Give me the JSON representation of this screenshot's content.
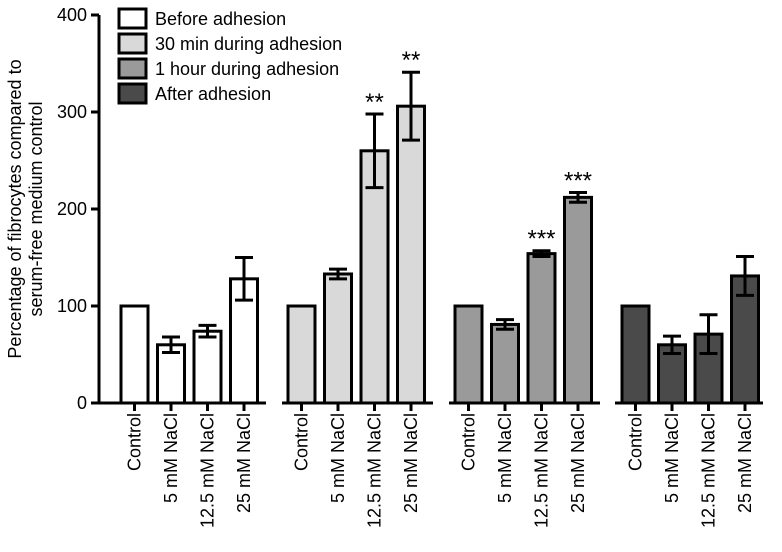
{
  "chart_data": {
    "type": "bar",
    "ylabel_lines": [
      "Percentage of fibrocytes compared to",
      "serum-free medium control"
    ],
    "ylim": [
      0,
      400
    ],
    "yticks": [
      0,
      100,
      200,
      300,
      400
    ],
    "grid": false,
    "legend_position": "top-left",
    "categories": [
      "Control",
      "5 mM NaCl",
      "12.5 mM NaCl",
      "25 mM NaCl"
    ],
    "series": [
      {
        "name": "Before adhesion",
        "color": "#ffffff",
        "values": [
          100,
          60,
          74,
          128
        ],
        "errors": [
          0,
          8,
          6,
          22
        ],
        "annotations": [
          "",
          "",
          "",
          ""
        ]
      },
      {
        "name": "30 min during adhesion",
        "color": "#d9d9d9",
        "values": [
          100,
          133,
          260,
          306
        ],
        "errors": [
          0,
          5,
          38,
          35
        ],
        "annotations": [
          "",
          "",
          "**",
          "**"
        ]
      },
      {
        "name": "1 hour during adhesion",
        "color": "#9a9a9a",
        "values": [
          100,
          81,
          154,
          212
        ],
        "errors": [
          0,
          5,
          3,
          5
        ],
        "annotations": [
          "",
          "",
          "***",
          "***"
        ]
      },
      {
        "name": "After adhesion",
        "color": "#4a4a4a",
        "values": [
          100,
          60,
          71,
          131
        ],
        "errors": [
          0,
          9,
          20,
          20
        ],
        "annotations": [
          "",
          "",
          "",
          ""
        ]
      }
    ]
  }
}
